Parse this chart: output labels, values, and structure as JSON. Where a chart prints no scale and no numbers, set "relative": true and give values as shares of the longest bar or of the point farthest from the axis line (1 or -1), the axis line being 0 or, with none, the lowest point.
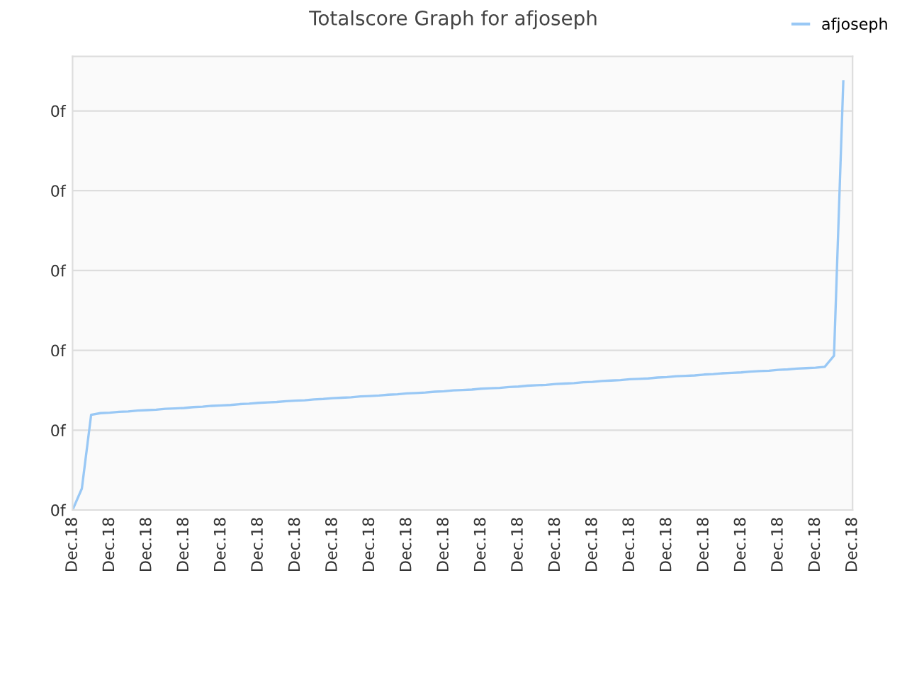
{
  "chart_data": {
    "type": "line",
    "title": "Totalscore Graph for afjoseph",
    "relative": true,
    "categories": [
      "Dec.18",
      null,
      null,
      null,
      "Dec.18",
      null,
      null,
      null,
      "Dec.18",
      null,
      null,
      null,
      "Dec.18",
      null,
      null,
      null,
      "Dec.18",
      null,
      null,
      null,
      "Dec.18",
      null,
      null,
      null,
      "Dec.18",
      null,
      null,
      null,
      "Dec.18",
      null,
      null,
      null,
      "Dec.18",
      null,
      null,
      null,
      "Dec.18",
      null,
      null,
      null,
      "Dec.18",
      null,
      null,
      null,
      "Dec.18",
      null,
      null,
      null,
      "Dec.18",
      null,
      null,
      null,
      "Dec.18",
      null,
      null,
      null,
      "Dec.18",
      null,
      null,
      null,
      "Dec.18",
      null,
      null,
      null,
      "Dec.18",
      null,
      null,
      null,
      "Dec.18",
      null,
      null,
      null,
      "Dec.18",
      null,
      null,
      null,
      "Dec.18",
      null,
      null,
      null,
      "Dec.18",
      null,
      null,
      null,
      "Dec.18"
    ],
    "annotations": [
      "0f",
      "0f",
      "0f",
      "0f",
      "0f",
      "0f"
    ],
    "grid": "y",
    "legend": "top right",
    "marker": "none",
    "line_style": "solid",
    "series": [
      {
        "name": "afjoseph",
        "color": "#99c8f5",
        "values": [
          0,
          0.05,
          0.222,
          0.226,
          0.227,
          0.229,
          0.23,
          0.232,
          0.233,
          0.234,
          0.236,
          0.237,
          0.238,
          0.24,
          0.241,
          0.243,
          0.244,
          0.245,
          0.247,
          0.248,
          0.25,
          0.251,
          0.252,
          0.254,
          0.255,
          0.256,
          0.258,
          0.259,
          0.261,
          0.262,
          0.263,
          0.265,
          0.266,
          0.267,
          0.269,
          0.27,
          0.272,
          0.273,
          0.274,
          0.276,
          0.277,
          0.279,
          0.28,
          0.281,
          0.283,
          0.284,
          0.285,
          0.287,
          0.288,
          0.29,
          0.291,
          0.292,
          0.294,
          0.295,
          0.296,
          0.298,
          0.299,
          0.301,
          0.302,
          0.303,
          0.305,
          0.306,
          0.307,
          0.309,
          0.31,
          0.312,
          0.313,
          0.314,
          0.316,
          0.317,
          0.319,
          0.32,
          0.321,
          0.323,
          0.324,
          0.325,
          0.327,
          0.328,
          0.33,
          0.331,
          0.332,
          0.334,
          0.36,
          1.0,
          null
        ]
      }
    ]
  }
}
